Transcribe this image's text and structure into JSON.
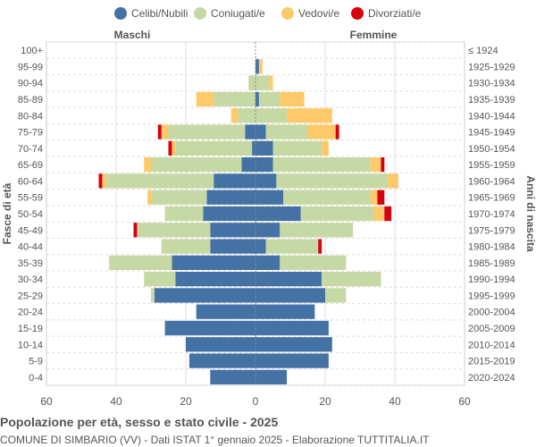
{
  "chart_data": {
    "type": "bar",
    "orientation": "horizontal-pyramid",
    "title": "Popolazione per età, sesso e stato civile - 2025",
    "subtitle": "COMUNE DI SIMBARIO (VV) - Dati ISTAT 1° gennaio 2025 - Elaborazione TUTTITALIA.IT",
    "left_header": "Maschi",
    "right_header": "Femmine",
    "ylabel_left": "Fasce di età",
    "ylabel_right": "Anni di nascita",
    "xlim": [
      -60,
      60
    ],
    "xticks": [
      "60",
      "40",
      "20",
      "0",
      "20",
      "40",
      "60"
    ],
    "grid": true,
    "legend_position": "top",
    "categories": [
      "100+",
      "95-99",
      "90-94",
      "85-89",
      "80-84",
      "75-79",
      "70-74",
      "65-69",
      "60-64",
      "55-59",
      "50-54",
      "45-49",
      "40-44",
      "35-39",
      "30-34",
      "25-29",
      "20-24",
      "15-19",
      "10-14",
      "5-9",
      "0-4"
    ],
    "birth_years": [
      "≤ 1924",
      "1925-1929",
      "1930-1934",
      "1935-1939",
      "1940-1944",
      "1945-1949",
      "1950-1954",
      "1955-1959",
      "1960-1964",
      "1965-1969",
      "1970-1974",
      "1975-1979",
      "1980-1984",
      "1985-1989",
      "1990-1994",
      "1995-1999",
      "2000-2004",
      "2005-2009",
      "2010-2014",
      "2015-2019",
      "2020-2024"
    ],
    "series": [
      {
        "name": "Celibi/Nubili",
        "color": "#4472a4",
        "male": [
          0,
          0,
          0,
          0,
          0,
          3,
          1,
          4,
          12,
          14,
          15,
          13,
          13,
          24,
          23,
          29,
          17,
          26,
          20,
          19,
          13
        ],
        "female": [
          0,
          1,
          0,
          1,
          0,
          3,
          5,
          5,
          6,
          8,
          13,
          7,
          3,
          7,
          19,
          20,
          17,
          21,
          22,
          21,
          9
        ]
      },
      {
        "name": "Coniugati/e",
        "color": "#c6d9a4",
        "male": [
          0,
          0,
          2,
          12,
          5,
          22,
          22,
          26,
          31,
          16,
          11,
          21,
          14,
          18,
          9,
          1,
          0,
          0,
          0,
          0,
          0
        ],
        "female": [
          0,
          0,
          4,
          6,
          9,
          12,
          14,
          28,
          32,
          25,
          21,
          21,
          15,
          19,
          17,
          6,
          0,
          0,
          0,
          0,
          0
        ]
      },
      {
        "name": "Vedovi/e",
        "color": "#fec968",
        "male": [
          0,
          0,
          0,
          5,
          2,
          2,
          1,
          2,
          1,
          1,
          0,
          0,
          0,
          0,
          0,
          0,
          0,
          0,
          0,
          0,
          0
        ],
        "female": [
          0,
          1,
          1,
          7,
          13,
          8,
          2,
          3,
          3,
          2,
          3,
          0,
          0,
          0,
          0,
          0,
          0,
          0,
          0,
          0,
          0
        ]
      },
      {
        "name": "Divorziati/e",
        "color": "#d7000f",
        "male": [
          0,
          0,
          0,
          0,
          0,
          1,
          1,
          0,
          1,
          0,
          0,
          1,
          0,
          0,
          0,
          0,
          0,
          0,
          0,
          0,
          0
        ],
        "female": [
          0,
          0,
          0,
          0,
          0,
          1,
          0,
          1,
          0,
          2,
          2,
          0,
          1,
          0,
          0,
          0,
          0,
          0,
          0,
          0,
          0
        ]
      }
    ]
  }
}
